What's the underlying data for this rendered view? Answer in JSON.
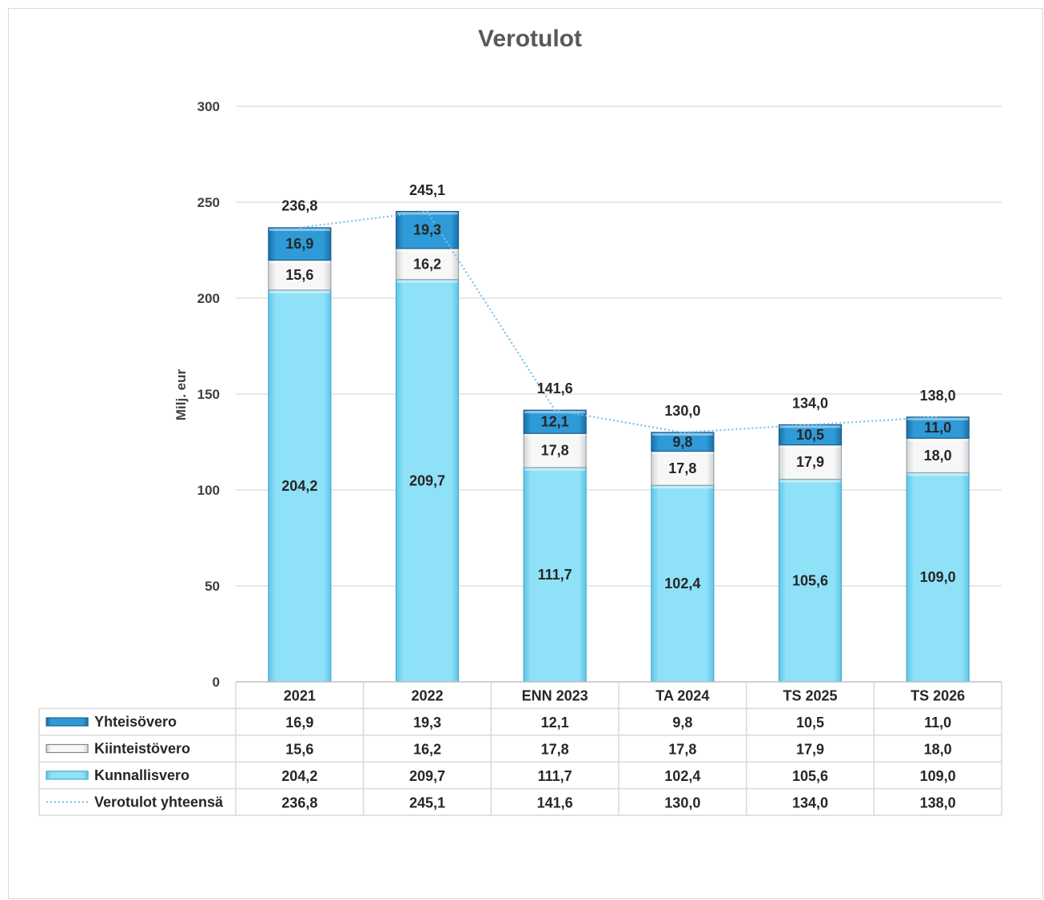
{
  "chart_data": {
    "type": "bar",
    "stacked": true,
    "title": "Verotulot",
    "xlabel": "",
    "ylabel": "Milj. eur",
    "ylim": [
      0,
      300
    ],
    "yticks": [
      "0",
      "50",
      "100",
      "150",
      "200",
      "250",
      "300"
    ],
    "ytick_values": [
      0,
      50,
      100,
      150,
      200,
      250,
      300
    ],
    "grid": true,
    "legend_placement": "data-table",
    "categories": [
      "2021",
      "2022",
      "ENN 2023",
      "TA 2024",
      "TS 2025",
      "TS 2026"
    ],
    "series": [
      {
        "name": "Kunnallisvero",
        "values": [
          204.2,
          209.7,
          111.7,
          102.4,
          105.6,
          109.0
        ],
        "labels": [
          "204,2",
          "209,7",
          "111,7",
          "102,4",
          "105,6",
          "109,0"
        ],
        "color": "#8ddff7"
      },
      {
        "name": "Kiinteistövero",
        "values": [
          15.6,
          16.2,
          17.8,
          17.8,
          17.9,
          18.0
        ],
        "labels": [
          "15,6",
          "16,2",
          "17,8",
          "17,8",
          "17,9",
          "18,0"
        ],
        "color": "#f2f2f2"
      },
      {
        "name": "Yhteisövero",
        "values": [
          16.9,
          19.3,
          12.1,
          9.8,
          10.5,
          11.0
        ],
        "labels": [
          "16,9",
          "19,3",
          "12,1",
          "9,8",
          "10,5",
          "11,0"
        ],
        "color": "#2e9ad6"
      }
    ],
    "total_series": {
      "name": "Verotulot yhteensä",
      "values": [
        236.8,
        245.1,
        141.6,
        130.0,
        134.0,
        138.0
      ],
      "labels": [
        "236,8",
        "245,1",
        "141,6",
        "130,0",
        "134,0",
        "138,0"
      ],
      "color": "#7fbfe8",
      "style": "dotted-line"
    },
    "table_rows": [
      "Yhteisövero",
      "Kiinteistövero",
      "Kunnallisvero",
      "Verotulot yhteensä"
    ]
  }
}
